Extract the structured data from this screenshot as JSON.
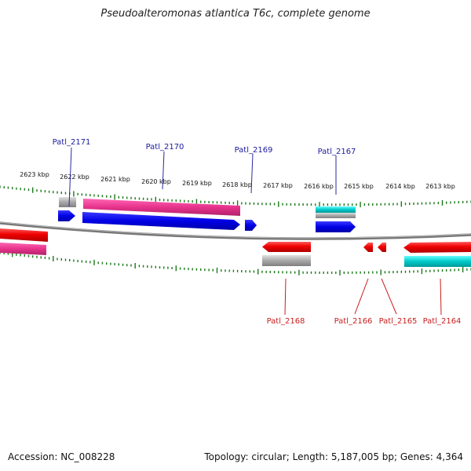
{
  "title": "Pseudoalteromonas atlantica T6c, complete genome",
  "footer": {
    "accession": "Accession: NC_008228",
    "summary": "Topology: circular; Length: 5,187,005 bp; Genes: 4,364"
  },
  "colors": {
    "backbone": "#808080",
    "tick": "#1a7a1a",
    "label_blue": "#1a1aa0",
    "label_red": "#c81e1e",
    "cds_blue": "#0000e6",
    "cds_red": "#e60000",
    "cds_magenta": "#e6338c",
    "cds_gray": "#a0a0a0",
    "cds_cyan": "#00c8c8",
    "leader": "#2a2aa0"
  },
  "kbp_ticks": [
    "2623 kbp",
    "2622 kbp",
    "2621 kbp",
    "2620 kbp",
    "2619 kbp",
    "2618 kbp",
    "2617 kbp",
    "2616 kbp",
    "2615 kbp",
    "2614 kbp",
    "2613 kbp"
  ],
  "gene_labels_top": [
    "Patl_2171",
    "Patl_2170",
    "Patl_2169",
    "Patl_2167"
  ],
  "gene_labels_bottom": [
    "Patl_2168",
    "Patl_2166",
    "Patl_2165",
    "Patl_2164"
  ]
}
